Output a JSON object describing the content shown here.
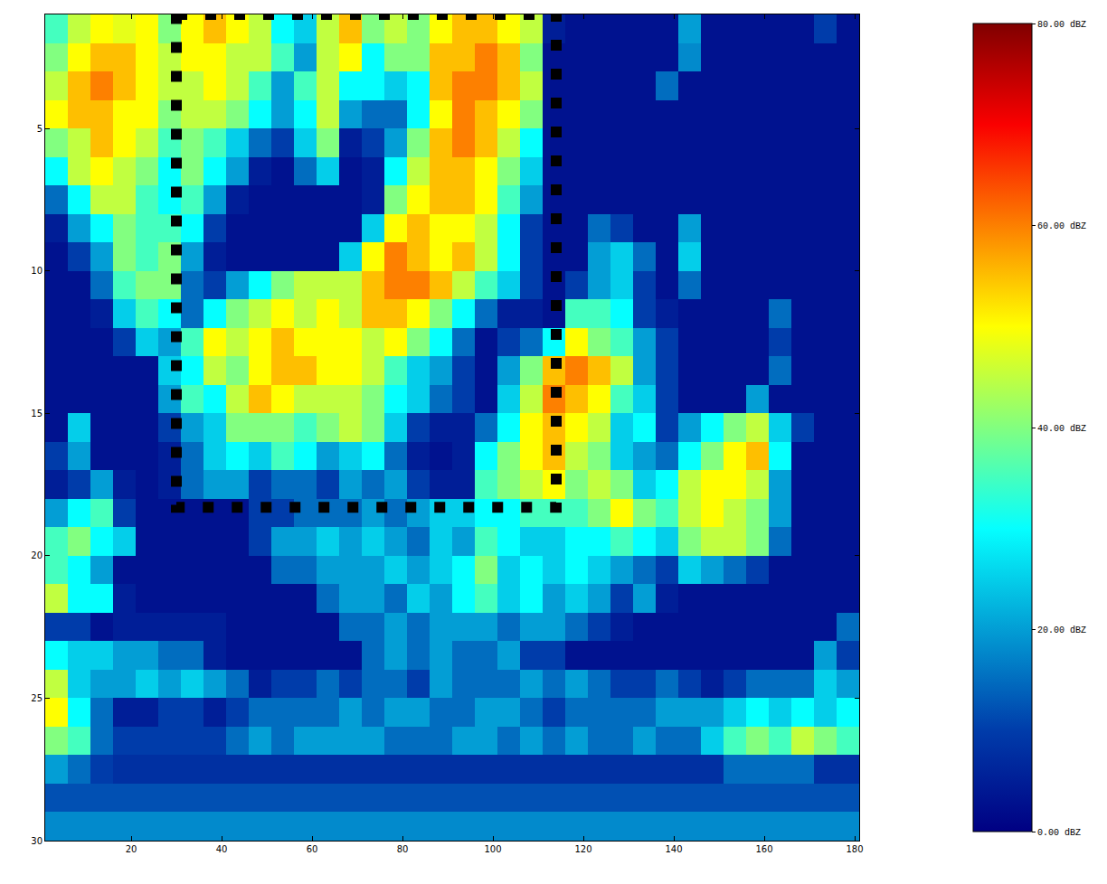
{
  "chart_data": {
    "type": "heatmap",
    "x": [
      1,
      6,
      11,
      16,
      21,
      26,
      31,
      36,
      41,
      46,
      51,
      56,
      61,
      66,
      71,
      76,
      81,
      86,
      91,
      96,
      101,
      106,
      111,
      116,
      121,
      126,
      131,
      136,
      141,
      146,
      151,
      156,
      161,
      166,
      171,
      176,
      181
    ],
    "y": [
      1,
      2,
      3,
      4,
      5,
      6,
      7,
      8,
      9,
      10,
      11,
      12,
      13,
      14,
      15,
      16,
      17,
      18,
      19,
      20,
      21,
      22,
      23,
      24,
      25,
      26,
      27,
      28,
      29,
      30
    ],
    "xlim": [
      1,
      181
    ],
    "ylim": [
      30,
      1
    ],
    "xticks": [
      20,
      40,
      60,
      80,
      100,
      120,
      140,
      160,
      180
    ],
    "yticks": [
      5,
      10,
      15,
      20,
      25,
      30
    ],
    "colorbar_range": [
      0,
      80
    ],
    "colorbar_ticks": [
      {
        "value": 0,
        "label": "0.00 dBZ"
      },
      {
        "value": 20,
        "label": "20.00 dBZ"
      },
      {
        "value": 40,
        "label": "40.00 dBZ"
      },
      {
        "value": 60,
        "label": "60.00 dBZ"
      },
      {
        "value": 80,
        "label": "80.00 dBZ"
      }
    ],
    "box": {
      "x0": 30,
      "x1": 114,
      "y0": 1,
      "y1": 18.3,
      "color": "#000000",
      "line_style": "dotted"
    },
    "cells": [
      [
        35,
        45,
        50,
        48,
        50,
        40,
        50,
        55,
        50,
        45,
        30,
        25,
        45,
        55,
        40,
        45,
        40,
        50,
        55,
        55,
        50,
        45,
        5,
        3,
        3,
        3,
        3,
        3,
        20,
        3,
        3,
        3,
        3,
        3,
        10,
        3
      ],
      [
        40,
        50,
        55,
        55,
        50,
        45,
        50,
        50,
        45,
        45,
        35,
        20,
        45,
        50,
        30,
        40,
        40,
        55,
        55,
        60,
        55,
        40,
        3,
        3,
        3,
        3,
        3,
        3,
        18,
        3,
        3,
        3,
        3,
        3,
        3,
        3
      ],
      [
        45,
        55,
        60,
        55,
        50,
        45,
        45,
        50,
        45,
        35,
        20,
        35,
        45,
        30,
        30,
        25,
        30,
        55,
        60,
        60,
        55,
        45,
        3,
        3,
        3,
        3,
        3,
        15,
        3,
        3,
        3,
        3,
        3,
        3,
        3,
        3
      ],
      [
        50,
        55,
        55,
        50,
        50,
        40,
        45,
        45,
        40,
        30,
        20,
        30,
        45,
        20,
        15,
        15,
        30,
        50,
        60,
        55,
        50,
        40,
        3,
        3,
        3,
        3,
        3,
        3,
        3,
        3,
        3,
        3,
        3,
        3,
        3,
        3
      ],
      [
        40,
        45,
        55,
        50,
        45,
        35,
        40,
        35,
        25,
        15,
        10,
        25,
        40,
        5,
        10,
        20,
        40,
        55,
        60,
        55,
        45,
        30,
        3,
        3,
        3,
        3,
        3,
        3,
        3,
        3,
        3,
        3,
        3,
        3,
        3,
        3
      ],
      [
        30,
        45,
        50,
        45,
        40,
        30,
        40,
        30,
        20,
        5,
        3,
        15,
        25,
        3,
        5,
        30,
        45,
        55,
        55,
        50,
        40,
        25,
        3,
        3,
        3,
        3,
        3,
        3,
        3,
        3,
        3,
        3,
        3,
        3,
        3,
        3
      ],
      [
        15,
        30,
        45,
        45,
        35,
        30,
        35,
        20,
        5,
        3,
        3,
        3,
        3,
        3,
        5,
        40,
        50,
        55,
        55,
        50,
        35,
        20,
        3,
        3,
        3,
        3,
        3,
        3,
        3,
        3,
        3,
        3,
        3,
        3,
        3,
        3
      ],
      [
        5,
        20,
        30,
        40,
        35,
        35,
        30,
        10,
        3,
        3,
        3,
        3,
        3,
        3,
        25,
        50,
        55,
        50,
        50,
        45,
        30,
        10,
        3,
        3,
        15,
        10,
        3,
        3,
        20,
        3,
        3,
        3,
        3,
        3,
        3,
        3
      ],
      [
        3,
        10,
        20,
        40,
        35,
        40,
        20,
        5,
        3,
        3,
        3,
        3,
        3,
        25,
        50,
        60,
        55,
        50,
        55,
        45,
        30,
        10,
        3,
        3,
        20,
        25,
        15,
        3,
        25,
        3,
        3,
        3,
        3,
        3,
        3,
        3
      ],
      [
        3,
        3,
        15,
        35,
        40,
        40,
        15,
        10,
        20,
        30,
        40,
        45,
        45,
        45,
        55,
        60,
        60,
        55,
        45,
        35,
        25,
        10,
        3,
        10,
        20,
        25,
        10,
        3,
        15,
        3,
        3,
        3,
        3,
        3,
        3,
        3
      ],
      [
        3,
        3,
        5,
        25,
        35,
        30,
        15,
        30,
        40,
        45,
        50,
        45,
        50,
        45,
        55,
        55,
        50,
        40,
        30,
        15,
        5,
        5,
        3,
        35,
        35,
        30,
        10,
        5,
        3,
        3,
        3,
        3,
        15,
        3,
        3,
        3
      ],
      [
        3,
        3,
        3,
        10,
        25,
        20,
        35,
        50,
        45,
        50,
        55,
        50,
        50,
        50,
        45,
        50,
        40,
        30,
        15,
        3,
        10,
        15,
        30,
        50,
        40,
        35,
        20,
        10,
        3,
        3,
        3,
        3,
        10,
        3,
        3,
        3
      ],
      [
        3,
        3,
        3,
        3,
        3,
        25,
        30,
        45,
        40,
        50,
        55,
        55,
        50,
        50,
        45,
        35,
        25,
        20,
        10,
        3,
        20,
        40,
        55,
        60,
        55,
        45,
        20,
        10,
        3,
        3,
        3,
        3,
        15,
        3,
        3,
        3
      ],
      [
        3,
        3,
        3,
        3,
        3,
        20,
        35,
        30,
        45,
        55,
        50,
        45,
        45,
        45,
        40,
        30,
        25,
        15,
        10,
        3,
        25,
        45,
        60,
        55,
        50,
        35,
        25,
        10,
        3,
        3,
        3,
        20,
        3,
        3,
        3,
        3
      ],
      [
        3,
        25,
        3,
        3,
        3,
        10,
        20,
        25,
        40,
        40,
        40,
        35,
        40,
        45,
        40,
        25,
        10,
        5,
        5,
        15,
        30,
        50,
        55,
        50,
        45,
        25,
        30,
        10,
        20,
        30,
        40,
        45,
        25,
        10,
        3,
        3
      ],
      [
        10,
        20,
        3,
        3,
        3,
        5,
        15,
        25,
        30,
        25,
        35,
        30,
        20,
        25,
        30,
        15,
        5,
        3,
        5,
        30,
        40,
        50,
        55,
        45,
        40,
        25,
        20,
        15,
        30,
        40,
        50,
        55,
        30,
        3,
        3,
        3
      ],
      [
        5,
        10,
        20,
        5,
        3,
        5,
        15,
        20,
        20,
        10,
        15,
        15,
        10,
        20,
        15,
        20,
        10,
        5,
        5,
        35,
        40,
        45,
        50,
        40,
        45,
        40,
        25,
        30,
        45,
        50,
        50,
        45,
        20,
        3,
        3,
        3
      ],
      [
        20,
        30,
        35,
        10,
        3,
        3,
        3,
        3,
        3,
        10,
        10,
        15,
        15,
        15,
        20,
        15,
        20,
        25,
        25,
        30,
        30,
        35,
        35,
        35,
        40,
        50,
        40,
        35,
        45,
        50,
        45,
        40,
        20,
        3,
        3,
        3
      ],
      [
        35,
        40,
        30,
        25,
        3,
        3,
        3,
        3,
        3,
        10,
        20,
        20,
        25,
        20,
        25,
        20,
        15,
        25,
        20,
        35,
        30,
        25,
        25,
        30,
        30,
        35,
        30,
        25,
        40,
        45,
        45,
        40,
        15,
        3,
        3,
        3
      ],
      [
        35,
        30,
        20,
        3,
        3,
        3,
        3,
        3,
        3,
        3,
        15,
        15,
        20,
        20,
        20,
        25,
        20,
        25,
        30,
        40,
        25,
        30,
        25,
        30,
        25,
        20,
        15,
        10,
        25,
        20,
        15,
        10,
        3,
        3,
        3,
        3
      ],
      [
        45,
        30,
        30,
        5,
        3,
        3,
        3,
        3,
        3,
        3,
        3,
        3,
        15,
        20,
        20,
        15,
        25,
        20,
        30,
        35,
        25,
        30,
        20,
        25,
        20,
        10,
        20,
        5,
        3,
        3,
        3,
        3,
        3,
        3,
        3,
        3
      ],
      [
        10,
        10,
        3,
        5,
        5,
        5,
        5,
        5,
        3,
        3,
        3,
        3,
        3,
        15,
        15,
        20,
        15,
        20,
        20,
        20,
        15,
        20,
        20,
        15,
        10,
        5,
        3,
        3,
        3,
        3,
        3,
        3,
        3,
        3,
        3,
        15
      ],
      [
        30,
        25,
        25,
        20,
        20,
        15,
        15,
        5,
        3,
        3,
        3,
        3,
        3,
        3,
        15,
        20,
        15,
        20,
        15,
        15,
        20,
        10,
        10,
        3,
        3,
        3,
        3,
        3,
        3,
        3,
        3,
        3,
        3,
        3,
        20,
        10
      ],
      [
        45,
        25,
        20,
        20,
        25,
        20,
        25,
        20,
        15,
        5,
        10,
        10,
        15,
        10,
        15,
        15,
        10,
        20,
        15,
        15,
        15,
        20,
        15,
        20,
        15,
        10,
        10,
        15,
        10,
        5,
        10,
        15,
        15,
        15,
        25,
        20
      ],
      [
        50,
        30,
        15,
        5,
        5,
        10,
        10,
        5,
        10,
        15,
        15,
        15,
        15,
        20,
        15,
        20,
        20,
        15,
        15,
        20,
        20,
        15,
        10,
        15,
        15,
        15,
        15,
        20,
        20,
        20,
        25,
        30,
        25,
        30,
        25,
        30
      ],
      [
        40,
        35,
        15,
        10,
        10,
        10,
        10,
        10,
        15,
        20,
        15,
        20,
        20,
        20,
        20,
        15,
        15,
        15,
        20,
        20,
        15,
        20,
        15,
        20,
        15,
        15,
        20,
        15,
        15,
        25,
        35,
        40,
        35,
        45,
        40,
        35
      ],
      [
        20,
        15,
        10,
        8,
        8,
        8,
        8,
        8,
        8,
        8,
        8,
        8,
        8,
        8,
        8,
        8,
        8,
        8,
        8,
        8,
        8,
        8,
        8,
        8,
        8,
        8,
        8,
        8,
        8,
        8,
        15,
        15,
        15,
        15,
        8,
        8
      ],
      [
        12,
        12,
        12,
        12,
        12,
        12,
        12,
        12,
        12,
        12,
        12,
        12,
        12,
        12,
        12,
        12,
        12,
        12,
        12,
        12,
        12,
        12,
        12,
        12,
        12,
        12,
        12,
        12,
        12,
        12,
        12,
        12,
        12,
        12,
        12,
        12
      ],
      [
        18,
        18,
        18,
        18,
        18,
        18,
        18,
        18,
        18,
        18,
        18,
        18,
        18,
        18,
        18,
        18,
        18,
        18,
        18,
        18,
        18,
        18,
        18,
        18,
        18,
        18,
        18,
        18,
        18,
        18,
        18,
        18,
        18,
        18,
        18,
        18
      ]
    ]
  }
}
